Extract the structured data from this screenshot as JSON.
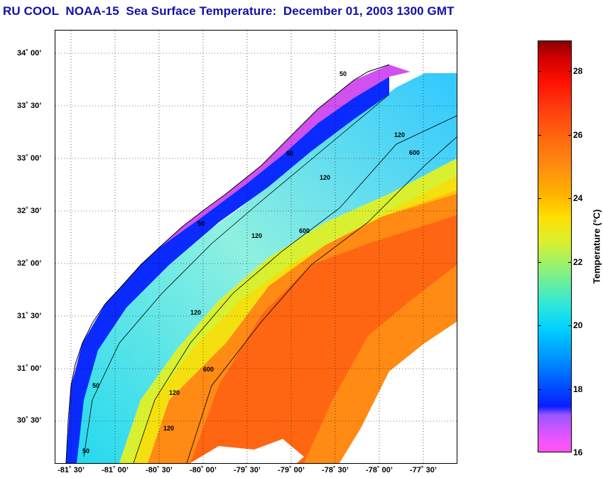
{
  "title": "RU COOL  NOAA-15  Sea Surface Temperature:  December 01, 2003 1300 GMT",
  "map": {
    "latitude_labels": [
      "34˚ 00’",
      "33˚ 30’",
      "33˚ 00’",
      "32˚ 30’",
      "32˚ 00’",
      "31˚ 30’",
      "31˚ 00’",
      "30˚ 30’"
    ],
    "longitude_labels": [
      "-81˚ 30’",
      "-81˚ 00’",
      "-80˚ 30’",
      "-80˚ 00’",
      "-79˚ 30’",
      "-79˚ 00’",
      "-78˚ 30’",
      "-78˚ 00’",
      "-77˚ 30’"
    ],
    "contour_labels": {
      "c50": "50",
      "c120": "120",
      "c600": "600"
    },
    "colors": {
      "land": "#ffffff",
      "coast": "#000000",
      "grid": "#000000",
      "magenta": "#ff55ee",
      "purple": "#9a55ff",
      "blue": "#0a2aff",
      "cyan": "#22d8f0",
      "green": "#90f070",
      "yellow": "#ffe200",
      "orange": "#ff8a14",
      "red_orange": "#ff5a10"
    }
  },
  "colorbar": {
    "label": "Temperature (°C)",
    "ticks": [
      "28",
      "26",
      "24",
      "22",
      "20",
      "18",
      "16"
    ],
    "min": 16,
    "max": 29
  }
}
